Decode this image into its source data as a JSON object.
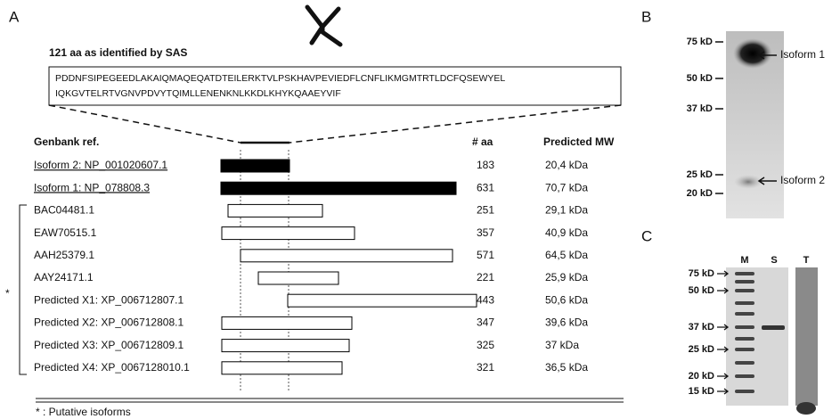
{
  "panel_a": {
    "label": "A",
    "sas_title": "121 aa as identified by SAS",
    "sequence": [
      "PDDNFSIPEGEEDLAKAIQMAQEQATDTEILERKTVLPSKHAVPEVIEDFLCNFLIKMGMTRTLDCFQSEWYEL",
      "IQKGVTELRTVGNVPDVYTQIMLLENENKNLKKDLKHYKQAAEYVIF"
    ],
    "headers": [
      "Genbank ref.",
      "# aa",
      "Predicted MW"
    ],
    "rows": [
      {
        "ref": "Isoform 2: NP_001020607.1",
        "aa": 183,
        "mw": "20,4 kDa"
      },
      {
        "ref": "Isoform 1: NP_078808.3",
        "aa": 631,
        "mw": "70,7 kDa"
      },
      {
        "ref": "BAC04481.1",
        "aa": 251,
        "mw": "29,1 kDa"
      },
      {
        "ref": "EAW70515.1",
        "aa": 357,
        "mw": "40,9 kDa"
      },
      {
        "ref": "AAH25379.1",
        "aa": 571,
        "mw": "64,5 kDa"
      },
      {
        "ref": "AAY24171.1",
        "aa": 221,
        "mw": "25,9 kDa"
      },
      {
        "ref": "Predicted X1: XP_006712807.1",
        "aa": 443,
        "mw": "50,6 kDa"
      },
      {
        "ref": "Predicted X2: XP_006712808.1",
        "aa": 347,
        "mw": "39,6 kDa"
      },
      {
        "ref": "Predicted X3: XP_006712809.1",
        "aa": 325,
        "mw": "37  kDa"
      },
      {
        "ref": "Predicted X4: XP_0067128010.1",
        "aa": 321,
        "mw": "36,5 kDa"
      }
    ],
    "asterisk": "*",
    "footnote": "* : Putative isoforms"
  },
  "panel_b": {
    "label": "B",
    "markers": [
      "75 kD",
      "50 kD",
      "37 kD",
      "25 kD",
      "20 kD"
    ],
    "annotations": [
      "Isoform 1",
      "Isoform 2"
    ]
  },
  "panel_c": {
    "label": "C",
    "lanes": [
      "M",
      "S",
      "T"
    ],
    "markers": [
      "75 kD",
      "50 kD",
      "37 kD",
      "25 kD",
      "20 kD",
      "15 kD"
    ]
  }
}
